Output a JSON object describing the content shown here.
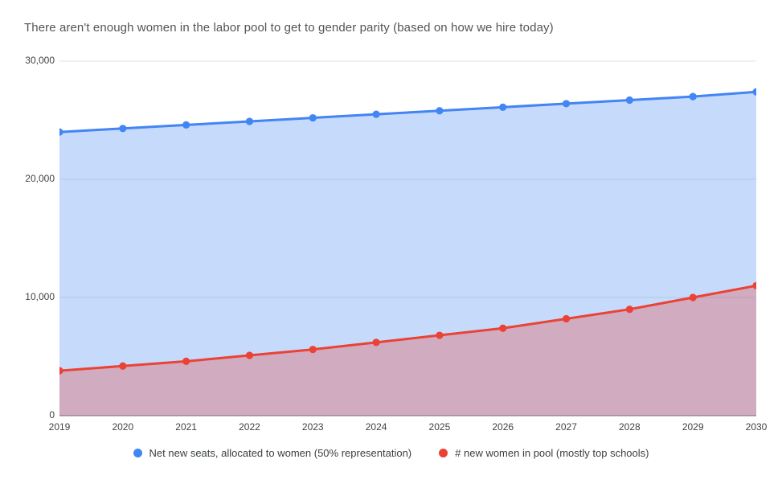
{
  "title": "There aren't enough women in the labor pool to get to gender parity (based on how we hire today)",
  "chart_data": {
    "type": "area",
    "title": "There aren't enough women in the labor pool to get to gender parity (based on how we hire today)",
    "x": [
      2019,
      2020,
      2021,
      2022,
      2023,
      2024,
      2025,
      2026,
      2027,
      2028,
      2029,
      2030
    ],
    "series": [
      {
        "name": "Net new seats, allocated to women (50% representation)",
        "color": "#4285F4",
        "values": [
          24000,
          24300,
          24600,
          24900,
          25200,
          25500,
          25800,
          26100,
          26400,
          26700,
          27000,
          27400
        ]
      },
      {
        "name": "# new women in pool (mostly top schools)",
        "color": "#EA4335",
        "values": [
          3800,
          4200,
          4600,
          5100,
          5600,
          6200,
          6800,
          7400,
          8200,
          9000,
          10000,
          11000
        ]
      }
    ],
    "xlabel": "",
    "ylabel": "",
    "ylim": [
      0,
      30000
    ],
    "yticks": [
      0,
      10000,
      20000,
      30000
    ],
    "ytick_labels": [
      "0",
      "10,000",
      "20,000",
      "30,000"
    ],
    "grid": true,
    "grid_color": "#E3E3E3",
    "axis_line_color": "#6B6B6B",
    "fill_opacity": 0.3,
    "line_width": 3,
    "marker_radius": 4.6,
    "legend_position": "bottom"
  }
}
